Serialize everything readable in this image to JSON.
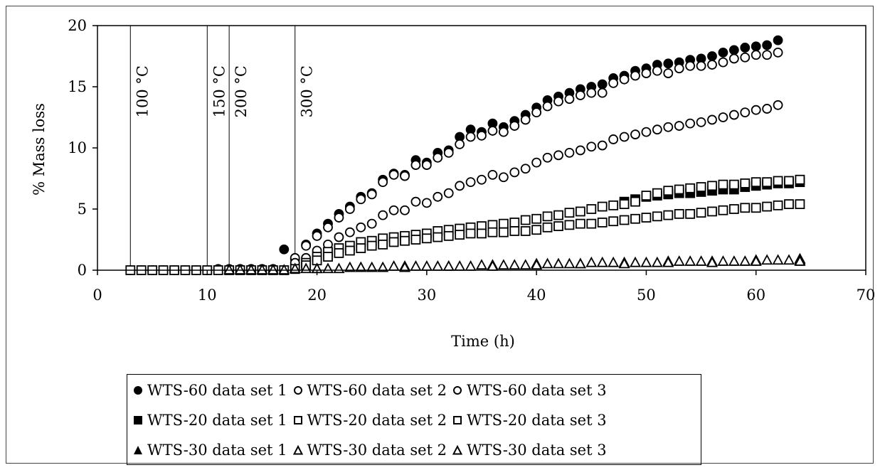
{
  "chart_data": {
    "type": "scatter",
    "xlabel": "Time (h)",
    "ylabel": "% Mass loss",
    "xlim": [
      0,
      70
    ],
    "ylim": [
      0,
      20
    ],
    "xticks": [
      "0",
      "10",
      "20",
      "30",
      "40",
      "50",
      "60",
      "70"
    ],
    "yticks": [
      "0",
      "5",
      "10",
      "15",
      "20"
    ],
    "grid": false,
    "legend_position": "bottom",
    "markers": [
      {
        "x": 3,
        "label": "100 °C"
      },
      {
        "x": 10,
        "label": "150 °C"
      },
      {
        "x": 12,
        "label": "200 °C"
      },
      {
        "x": 18,
        "label": "300 °C"
      }
    ],
    "series": [
      {
        "name": "WTS-60 data set 1",
        "marker": "circle",
        "filled": true,
        "x": [
          3,
          4,
          5,
          6,
          7,
          8,
          9,
          10,
          11,
          12,
          13,
          14,
          15,
          16,
          17,
          18,
          19,
          20,
          21,
          22,
          23,
          24,
          25,
          26,
          27,
          28,
          29,
          30,
          31,
          32,
          33,
          34,
          35,
          36,
          37,
          38,
          39,
          40,
          41,
          42,
          43,
          44,
          45,
          46,
          47,
          48,
          49,
          50,
          51,
          52,
          53,
          54,
          55,
          56,
          57,
          58,
          59,
          60,
          61,
          62
        ],
        "y": [
          0,
          0,
          0,
          0,
          0,
          0,
          0,
          0,
          0.1,
          0.1,
          0.1,
          0.1,
          0.1,
          0.1,
          1.7,
          0.9,
          2.1,
          3.0,
          3.8,
          4.6,
          5.2,
          6.0,
          6.3,
          7.4,
          7.9,
          7.8,
          9.0,
          8.8,
          9.6,
          9.8,
          10.9,
          11.5,
          11.3,
          12.0,
          11.7,
          12.2,
          12.7,
          13.3,
          13.9,
          14.2,
          14.5,
          14.8,
          15.0,
          15.2,
          15.7,
          15.9,
          16.3,
          16.5,
          16.8,
          16.9,
          17.0,
          17.2,
          17.3,
          17.5,
          17.8,
          18.0,
          18.2,
          18.3,
          18.4,
          18.8
        ]
      },
      {
        "name": "WTS-60 data set 2",
        "marker": "circle",
        "filled": false,
        "x": [
          18,
          19,
          20,
          21,
          22,
          23,
          24,
          25,
          26,
          27,
          28,
          29,
          30,
          31,
          32,
          33,
          34,
          35,
          36,
          37,
          38,
          39,
          40,
          41,
          42,
          43,
          44,
          45,
          46,
          47,
          48,
          49,
          50,
          51,
          52,
          53,
          54,
          55,
          56,
          57,
          58,
          59,
          60,
          61,
          62
        ],
        "y": [
          1.0,
          2.0,
          2.8,
          3.5,
          4.3,
          5.0,
          5.8,
          6.2,
          7.2,
          7.8,
          7.7,
          8.6,
          8.6,
          9.2,
          9.6,
          10.3,
          10.9,
          11.0,
          11.4,
          11.3,
          11.8,
          12.3,
          12.9,
          13.4,
          13.8,
          14.0,
          14.3,
          14.5,
          14.5,
          15.3,
          15.6,
          15.9,
          16.1,
          16.3,
          16.1,
          16.5,
          16.7,
          16.7,
          16.8,
          17.0,
          17.3,
          17.4,
          17.6,
          17.6,
          17.8
        ]
      },
      {
        "name": "WTS-60 data set 3",
        "marker": "circle",
        "filled": false,
        "x": [
          18,
          19,
          20,
          21,
          22,
          23,
          24,
          25,
          26,
          27,
          28,
          29,
          30,
          31,
          32,
          33,
          34,
          35,
          36,
          37,
          38,
          39,
          40,
          41,
          42,
          43,
          44,
          45,
          46,
          47,
          48,
          49,
          50,
          51,
          52,
          53,
          54,
          55,
          56,
          57,
          58,
          59,
          60,
          61,
          62
        ],
        "y": [
          0.6,
          1.0,
          1.6,
          2.1,
          2.7,
          3.1,
          3.5,
          3.8,
          4.5,
          4.9,
          4.9,
          5.6,
          5.5,
          6.0,
          6.3,
          6.9,
          7.2,
          7.4,
          7.8,
          7.6,
          8.0,
          8.3,
          8.8,
          9.2,
          9.4,
          9.6,
          9.8,
          10.1,
          10.2,
          10.7,
          10.9,
          11.1,
          11.3,
          11.5,
          11.7,
          11.8,
          12.0,
          12.1,
          12.3,
          12.5,
          12.7,
          12.9,
          13.1,
          13.2,
          13.5
        ]
      },
      {
        "name": "WTS-20 data set 1",
        "marker": "square",
        "filled": true,
        "x": [
          48,
          49,
          50,
          51,
          52,
          53,
          54,
          55,
          56,
          57,
          58,
          59,
          60,
          61,
          62,
          63,
          64
        ],
        "y": [
          5.6,
          5.8,
          6.0,
          6.1,
          6.2,
          6.3,
          6.3,
          6.4,
          6.5,
          6.6,
          6.6,
          6.8,
          6.9,
          7.0,
          7.1,
          7.1,
          7.2
        ]
      },
      {
        "name": "WTS-20 data set 2",
        "marker": "square",
        "filled": false,
        "x": [
          3,
          4,
          5,
          6,
          7,
          8,
          9,
          10,
          11,
          12,
          13,
          14,
          15,
          16,
          17,
          18,
          19,
          20,
          21,
          22,
          23,
          24,
          25,
          26,
          27,
          28,
          29,
          30,
          31,
          32,
          33,
          34,
          35,
          36,
          37,
          38,
          39,
          40,
          41,
          42,
          43,
          44,
          45,
          46,
          47,
          48,
          49,
          50,
          51,
          52,
          53,
          54,
          55,
          56,
          57,
          58,
          59,
          60,
          61,
          62,
          63,
          64
        ],
        "y": [
          0,
          0,
          0,
          0,
          0,
          0,
          0,
          0,
          0,
          0,
          0,
          0,
          0,
          0,
          0,
          0.1,
          0.6,
          1.1,
          1.5,
          1.8,
          2.0,
          2.3,
          2.4,
          2.6,
          2.7,
          2.8,
          2.9,
          3.0,
          3.2,
          3.3,
          3.4,
          3.5,
          3.6,
          3.7,
          3.8,
          3.9,
          4.1,
          4.2,
          4.4,
          4.5,
          4.7,
          4.8,
          5.0,
          5.2,
          5.3,
          5.4,
          5.6,
          6.1,
          6.3,
          6.5,
          6.6,
          6.7,
          6.8,
          6.9,
          7.0,
          7.0,
          7.1,
          7.2,
          7.2,
          7.3,
          7.3,
          7.4
        ]
      },
      {
        "name": "WTS-20 data set 3",
        "marker": "square",
        "filled": false,
        "x": [
          19,
          20,
          21,
          22,
          23,
          24,
          25,
          26,
          27,
          28,
          29,
          30,
          31,
          32,
          33,
          34,
          35,
          36,
          37,
          38,
          39,
          40,
          41,
          42,
          43,
          44,
          45,
          46,
          47,
          48,
          49,
          50,
          51,
          52,
          53,
          54,
          55,
          56,
          57,
          58,
          59,
          60,
          61,
          62,
          63,
          64
        ],
        "y": [
          0.4,
          0.8,
          1.1,
          1.4,
          1.6,
          1.8,
          2.0,
          2.1,
          2.3,
          2.4,
          2.5,
          2.6,
          2.7,
          2.8,
          2.9,
          3.0,
          3.0,
          3.1,
          3.1,
          3.2,
          3.2,
          3.3,
          3.5,
          3.6,
          3.7,
          3.8,
          3.8,
          3.9,
          4.0,
          4.1,
          4.2,
          4.3,
          4.4,
          4.5,
          4.6,
          4.6,
          4.7,
          4.8,
          4.9,
          5.0,
          5.1,
          5.1,
          5.2,
          5.3,
          5.4,
          5.4
        ]
      },
      {
        "name": "WTS-30 data set 1",
        "marker": "triangle",
        "filled": true,
        "x": [
          64
        ],
        "y": [
          0.9
        ]
      },
      {
        "name": "WTS-30 data set 2",
        "marker": "triangle",
        "filled": false,
        "x": [
          12,
          13,
          14,
          15,
          16,
          17,
          18,
          19,
          20,
          21,
          22,
          23,
          24,
          25,
          26,
          27,
          28,
          29,
          30,
          31,
          32,
          33,
          34,
          35,
          36,
          37,
          38,
          39,
          40,
          41,
          42,
          43,
          44,
          45,
          46,
          47,
          48,
          49,
          50,
          51,
          52,
          53,
          54,
          55,
          56,
          57,
          58,
          59,
          60,
          61,
          62,
          63,
          64
        ],
        "y": [
          0,
          0,
          0,
          0,
          0,
          0,
          0.1,
          0.1,
          0.1,
          0.1,
          0.1,
          0.2,
          0.2,
          0.2,
          0.2,
          0.3,
          0.3,
          0.3,
          0.3,
          0.3,
          0.3,
          0.3,
          0.3,
          0.4,
          0.4,
          0.4,
          0.4,
          0.4,
          0.5,
          0.5,
          0.5,
          0.5,
          0.5,
          0.6,
          0.6,
          0.6,
          0.6,
          0.6,
          0.6,
          0.6,
          0.7,
          0.7,
          0.7,
          0.7,
          0.7,
          0.7,
          0.7,
          0.7,
          0.8,
          0.8,
          0.8,
          0.8,
          0.8
        ]
      },
      {
        "name": "WTS-30 data set 3",
        "marker": "triangle",
        "filled": false,
        "x": [
          20,
          24,
          28,
          32,
          36,
          40,
          44,
          48,
          52,
          56,
          60,
          64
        ],
        "y": [
          0.1,
          0.2,
          0.2,
          0.3,
          0.3,
          0.4,
          0.5,
          0.5,
          0.6,
          0.6,
          0.7,
          0.7
        ]
      }
    ]
  }
}
